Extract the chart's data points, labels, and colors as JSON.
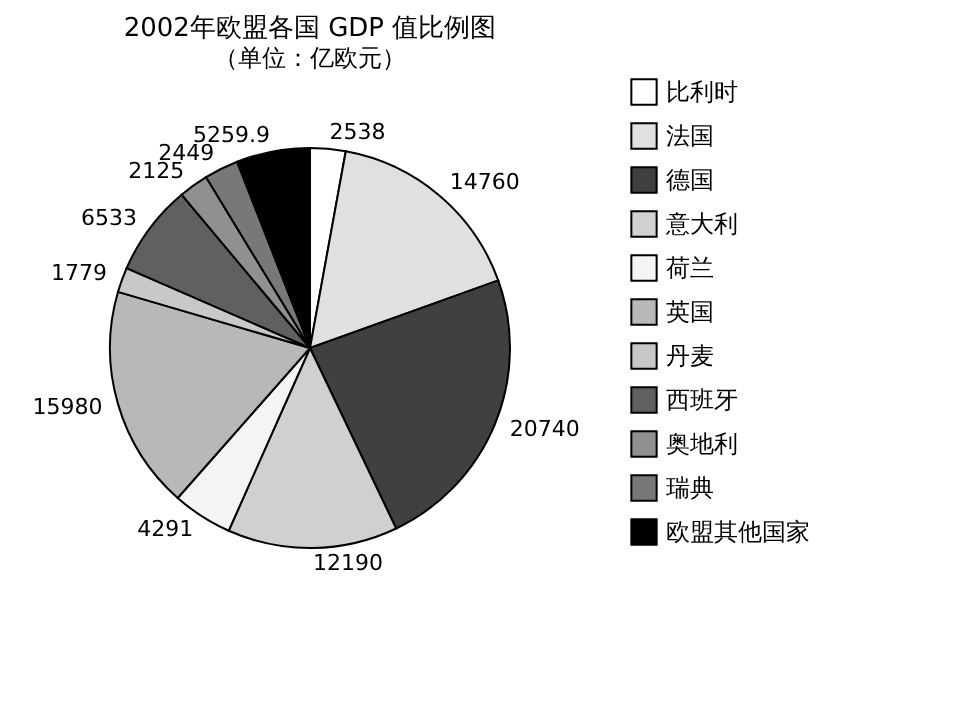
{
  "chart_data": {
    "type": "pie",
    "title": "2002年欧盟各国 GDP 值比例图",
    "subtitle": "（单位：亿欧元）",
    "categories": [
      "比利时",
      "法国",
      "德国",
      "意大利",
      "荷兰",
      "英国",
      "丹麦",
      "西班牙",
      "奥地利",
      "瑞典",
      "欧盟其他国家"
    ],
    "values": [
      2538,
      14760,
      20740,
      12190,
      4291,
      15980,
      1779,
      6533,
      2125,
      2449,
      5259.9
    ],
    "colors": [
      "#ffffff",
      "#e0e0e0",
      "#404040",
      "#d0d0d0",
      "#f4f4f4",
      "#b8b8b8",
      "#c8c8c8",
      "#606060",
      "#909090",
      "#787878",
      "#000000"
    ],
    "data_labels": true,
    "legend": "right"
  }
}
